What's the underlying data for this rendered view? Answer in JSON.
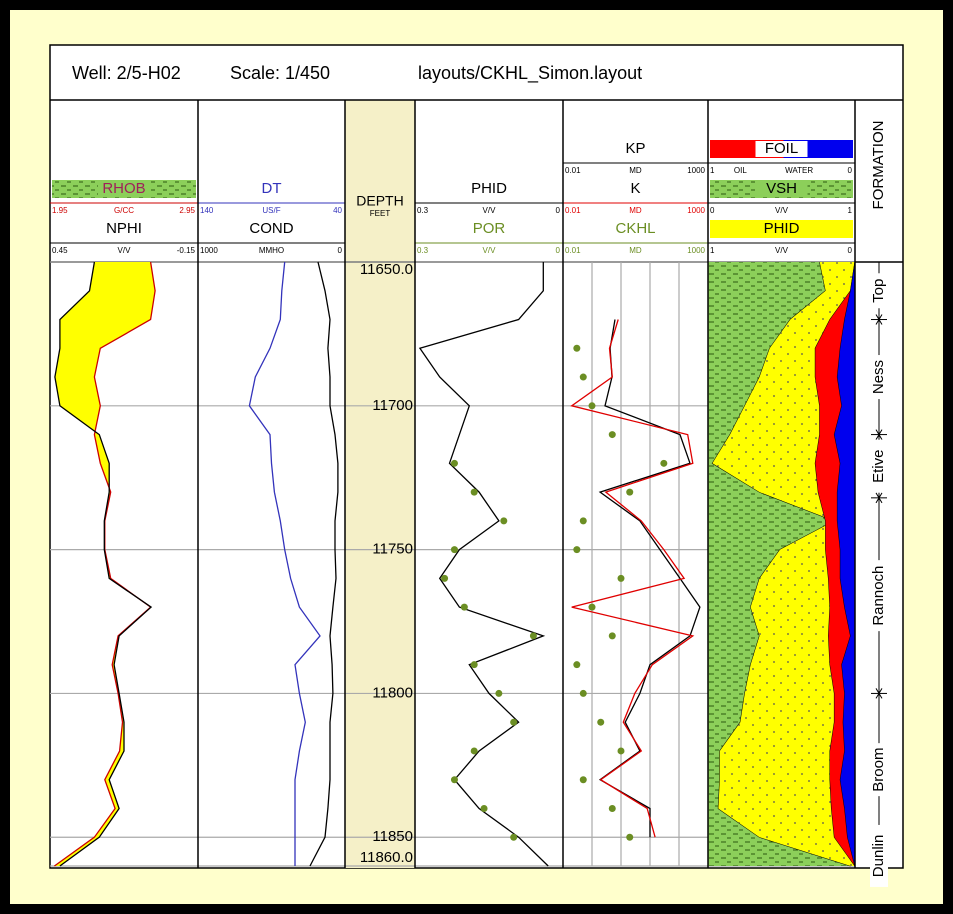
{
  "header": {
    "well": "Well: 2/5-H02",
    "scale": "Scale: 1/450",
    "layout": "layouts/CKHL_Simon.layout"
  },
  "chart_data": {
    "type": "well-log",
    "depth_title": "DEPTH",
    "depth_unit": "FEET",
    "x": [
      11650,
      11660,
      11670,
      11680,
      11690,
      11700,
      11710,
      11720,
      11730,
      11740,
      11750,
      11760,
      11770,
      11780,
      11790,
      11800,
      11810,
      11820,
      11830,
      11840,
      11850,
      11860
    ],
    "ylim": [
      11650,
      11860
    ],
    "yticks": [
      {
        "value": 11650,
        "label": "11650.0"
      },
      11700,
      11750,
      11800,
      11850,
      {
        "value": 11860,
        "label": "11860.0"
      }
    ],
    "grid": true,
    "tracks": [
      {
        "curves": [
          {
            "name": "RHOB",
            "unit": "G/CC",
            "color": "#cc0000",
            "label_color": "#a0205a",
            "label_bg": "#8ccf5a",
            "fill": "#ffff00",
            "mark": "line",
            "xlim": [
              1.95,
              2.95
            ],
            "values": [
              2.63,
              2.66,
              2.63,
              2.29,
              2.25,
              2.29,
              2.25,
              2.29,
              2.36,
              2.32,
              2.32,
              2.36,
              2.63,
              2.41,
              2.37,
              2.41,
              2.44,
              2.42,
              2.32,
              2.39,
              2.25,
              1.98
            ]
          },
          {
            "name": "NPHI",
            "unit": "V/V",
            "color": "#000000",
            "mark": "line",
            "xlim": [
              0.45,
              -0.15
            ],
            "values": [
              0.27,
              0.29,
              0.41,
              0.41,
              0.43,
              0.41,
              0.25,
              0.21,
              0.21,
              0.23,
              0.23,
              0.21,
              0.04,
              0.17,
              0.19,
              0.17,
              0.15,
              0.15,
              0.21,
              0.17,
              0.25,
              0.41
            ]
          }
        ]
      },
      {
        "curves": [
          {
            "name": "DT",
            "unit": "US/F",
            "color": "#3333bb",
            "mark": "line",
            "xlim": [
              140,
              40
            ],
            "values": [
              81,
              83,
              84,
              91,
              101,
              105,
              91,
              90,
              88,
              84,
              81,
              77,
              71,
              57,
              74,
              71,
              67,
              71,
              74,
              74,
              74,
              74
            ]
          },
          {
            "name": "COND",
            "unit": "MMHO",
            "color": "#000000",
            "mark": "line",
            "xlim": [
              1000,
              0
            ],
            "values": [
              184,
              136,
              102,
              116,
              102,
              102,
              68,
              48,
              48,
              68,
              68,
              61,
              82,
              102,
              88,
              82,
              102,
              102,
              102,
              116,
              136,
              238
            ]
          }
        ]
      },
      {
        "curves": [
          {
            "name": "PHID",
            "unit": "V/V",
            "color": "#000000",
            "mark": "line",
            "xlim": [
              0.3,
              0
            ],
            "values": [
              0.04,
              0.04,
              0.09,
              0.29,
              0.25,
              0.19,
              0.21,
              0.23,
              0.17,
              0.13,
              0.21,
              0.25,
              0.21,
              0.04,
              0.19,
              0.15,
              0.09,
              0.17,
              0.22,
              0.17,
              0.09,
              0.03
            ]
          },
          {
            "name": "POR",
            "unit": "V/V",
            "color": "#6b8e23",
            "mark": "points",
            "xlim": [
              0.3,
              0
            ],
            "values": [
              null,
              null,
              null,
              null,
              null,
              null,
              null,
              0.22,
              0.18,
              0.12,
              0.22,
              0.24,
              0.2,
              0.06,
              0.18,
              0.13,
              0.1,
              0.18,
              0.22,
              0.16,
              0.1,
              null
            ]
          }
        ]
      },
      {
        "grid_x": true,
        "curves": [
          {
            "name": "KP",
            "unit": "MD",
            "color": "#000000",
            "mark": "line",
            "log": true,
            "xlim": [
              0.01,
              1000
            ],
            "values": [
              null,
              null,
              0.62,
              0.42,
              0.49,
              0.28,
              108,
              240,
              0.19,
              4.5,
              22,
              108,
              525,
              240,
              10,
              4.5,
              1.4,
              4.5,
              0.19,
              10,
              10,
              null
            ]
          },
          {
            "name": "K",
            "unit": "MD",
            "color": "#e00000",
            "mark": "line",
            "log": true,
            "xlim": [
              0.01,
              1000
            ],
            "values": [
              null,
              null,
              0.8,
              0.4,
              0.5,
              0.02,
              200,
              300,
              0.3,
              5,
              30,
              150,
              0.02,
              300,
              12,
              3,
              1.2,
              5,
              0.2,
              8,
              15,
              null
            ]
          },
          {
            "name": "CKHL",
            "unit": "MD",
            "color": "#6b8e23",
            "mark": "points",
            "log": true,
            "xlim": [
              0.01,
              1000
            ],
            "values": [
              null,
              null,
              null,
              0.03,
              0.05,
              0.1,
              0.5,
              30,
              2,
              0.05,
              0.03,
              1,
              0.1,
              0.5,
              0.03,
              0.05,
              0.2,
              1,
              0.05,
              0.5,
              2,
              null
            ]
          }
        ]
      },
      {
        "stacked": true,
        "curves": [
          {
            "name": "FOIL",
            "unit_labels": [
              "OIL",
              "WATER"
            ],
            "color": "#ff0000",
            "label_bg": "#ff0000",
            "fill": "#ff0000",
            "fill2": "#0000ee",
            "mark": "area",
            "xlim": [
              1,
              0
            ],
            "values": [
              0,
              0.03,
              0.07,
              0.1,
              0.12,
              0.09,
              0.14,
              0.1,
              0.12,
              0.12,
              0.1,
              0.1,
              0.07,
              0.03,
              0.09,
              0.07,
              0.08,
              0.07,
              0.1,
              0.07,
              0.05,
              0
            ]
          },
          {
            "name": "VSH",
            "unit": "V/V",
            "color": "#000000",
            "label_bg": "#8ccf5a",
            "fill": "#8ccf5a",
            "mark": "area",
            "xlim": [
              0,
              1
            ],
            "values": [
              0.76,
              0.8,
              0.56,
              0.42,
              0.35,
              0.25,
              0.15,
              0.03,
              0.35,
              0.86,
              0.49,
              0.35,
              0.29,
              0.35,
              0.29,
              0.25,
              0.22,
              0.08,
              0.08,
              0.07,
              0.35,
              0.97
            ]
          },
          {
            "name": "PHID",
            "unit": "V/V",
            "color": "#000000",
            "label_bg": "#ffff00",
            "fill": "#ffff00",
            "mark": "area",
            "xlim": [
              1,
              0
            ],
            "values": [
              0,
              0.03,
              0.17,
              0.27,
              0.27,
              0.24,
              0.24,
              0.27,
              0.25,
              0.2,
              0.2,
              0.18,
              0.17,
              0.18,
              0.17,
              0.14,
              0.14,
              0.17,
              0.17,
              0.16,
              0.14,
              0
            ]
          }
        ]
      }
    ],
    "formation_title": "FORMATION",
    "formations": {
      "names": [
        "Top",
        "Ness",
        "Etive",
        "Rannoch",
        "Broom",
        "Dunlin"
      ],
      "tops": [
        11650,
        11670,
        11710,
        11732,
        11800,
        11853
      ]
    }
  }
}
